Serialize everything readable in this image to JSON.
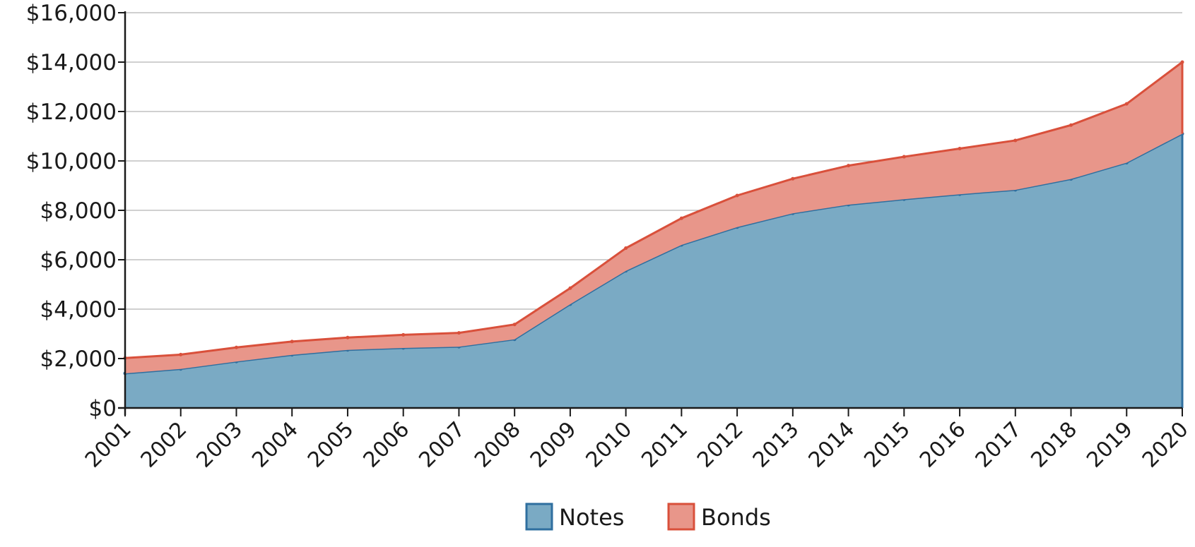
{
  "chart_data": {
    "type": "area",
    "stacked": true,
    "x": [
      "2001",
      "2002",
      "2003",
      "2004",
      "2005",
      "2006",
      "2007",
      "2008",
      "2009",
      "2010",
      "2011",
      "2012",
      "2013",
      "2014",
      "2015",
      "2016",
      "2017",
      "2018",
      "2019",
      "2020"
    ],
    "series": [
      {
        "name": "Notes",
        "values": [
          1400,
          1580,
          1880,
          2150,
          2350,
          2430,
          2480,
          2780,
          4200,
          5550,
          6600,
          7320,
          7880,
          8230,
          8450,
          8650,
          8830,
          9270,
          9930,
          11100
        ],
        "fill": "#7aaac4",
        "stroke": "#2f6f9f"
      },
      {
        "name": "Bonds",
        "values": [
          620,
          580,
          570,
          540,
          500,
          530,
          560,
          600,
          650,
          920,
          1080,
          1280,
          1400,
          1580,
          1720,
          1850,
          2000,
          2180,
          2380,
          2900
        ],
        "fill": "#e8968a",
        "stroke": "#d9503b"
      }
    ],
    "ylim": [
      0,
      16000
    ],
    "yticks": [
      0,
      2000,
      4000,
      6000,
      8000,
      10000,
      12000,
      14000,
      16000
    ],
    "ytick_labels": [
      "$0",
      "$2,000",
      "$4,000",
      "$6,000",
      "$8,000",
      "$10,000",
      "$12,000",
      "$14,000",
      "$16,000"
    ],
    "grid": true,
    "legend_position": "bottom-center",
    "title": "",
    "xlabel": "",
    "ylabel": ""
  }
}
